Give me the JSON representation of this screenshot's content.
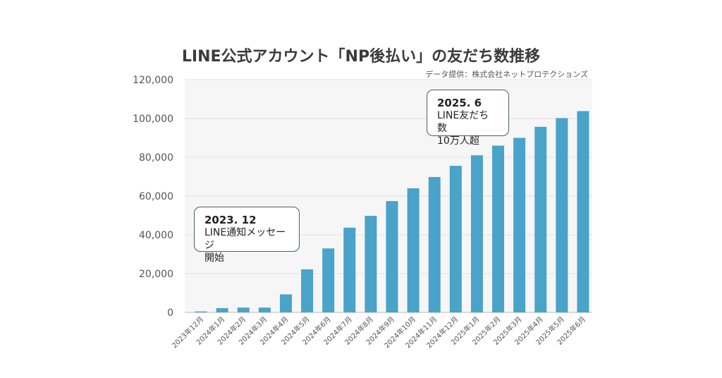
{
  "title": "LINE公式アカウント「NP後払い」の友だち数推移",
  "source": "データ提供：株式会社ネットプロテクションズ",
  "annotations": [
    {
      "lines": [
        "2023. 12",
        "LINE通知メッセージ",
        "開始"
      ]
    },
    {
      "lines": [
        "2025. 6",
        "LINE友だち数",
        "10万人超"
      ]
    }
  ],
  "colors": {
    "bar": "#4aa3c8",
    "plot_bg": "#f6f6f6",
    "grid": "#e2e2e2",
    "axis_text": "#555555"
  },
  "chart_data": {
    "type": "bar",
    "title": "LINE公式アカウント「NP後払い」の友だち数推移",
    "categories": [
      "2023年12月",
      "2024年1月",
      "2024年2月",
      "2024年3月",
      "2024年4月",
      "2024年5月",
      "2024年6月",
      "2024年7月",
      "2024年8月",
      "2024年9月",
      "2024年10月",
      "2024年11月",
      "2024年12月",
      "2025年1月",
      "2025年2月",
      "2025年3月",
      "2025年4月",
      "2025年5月",
      "2025年6月"
    ],
    "values": [
      500,
      2200,
      2500,
      2500,
      9300,
      22200,
      33000,
      43700,
      49800,
      57400,
      64000,
      69800,
      75600,
      81000,
      86000,
      90000,
      95700,
      100200,
      103800
    ],
    "ylim": [
      0,
      120000
    ],
    "yticks": [
      0,
      20000,
      40000,
      60000,
      80000,
      100000,
      120000
    ],
    "ytick_labels": [
      "0",
      "20,000",
      "40,000",
      "60,000",
      "80,000",
      "100,000",
      "120,000"
    ],
    "grid": true,
    "legend": "none"
  }
}
